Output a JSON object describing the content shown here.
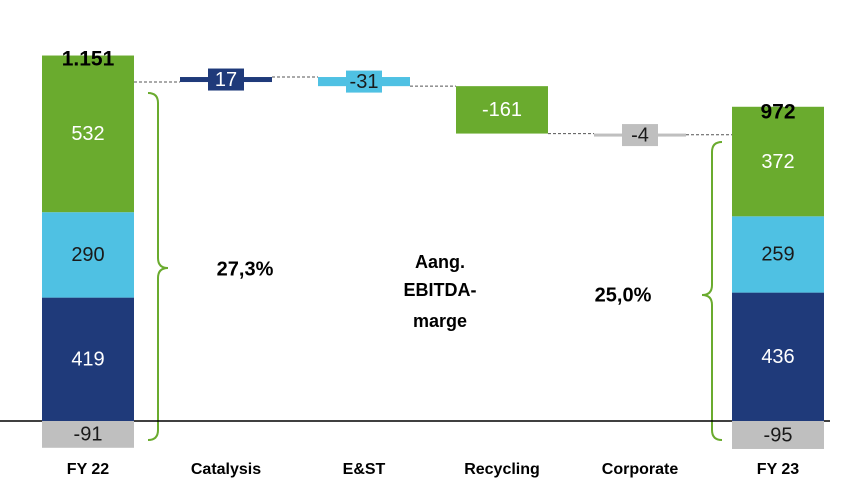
{
  "chart_data": {
    "type": "waterfall",
    "categories": [
      "FY 22",
      "Catalysis",
      "E&ST",
      "Recycling",
      "Corporate",
      "FY 23"
    ],
    "series": [
      {
        "color": "#1f3a7a",
        "label_color": "#ffffff",
        "values": [
          419,
          null,
          null,
          null,
          null,
          436
        ]
      },
      {
        "color": "#4fc1e3",
        "label_color": "#1a1a1a",
        "values": [
          290,
          null,
          null,
          null,
          null,
          259
        ]
      },
      {
        "color": "#6aab2e",
        "label_color": "#ffffff",
        "values": [
          532,
          null,
          null,
          null,
          null,
          372
        ]
      },
      {
        "color": "#bfbfbf",
        "label_color": "#1a1a1a",
        "values": [
          -91,
          null,
          null,
          null,
          null,
          -95
        ]
      }
    ],
    "totals": {
      "values": [
        1151,
        null,
        null,
        null,
        null,
        972
      ],
      "value_labels": [
        "1.151",
        null,
        null,
        null,
        null,
        "972"
      ]
    },
    "deltas": {
      "values": [
        null,
        17,
        -31,
        -161,
        -4,
        null
      ],
      "colors": [
        null,
        "#1f3a7a",
        "#4fc1e3",
        "#6aab2e",
        "#bfbfbf",
        null
      ],
      "label_colors": [
        null,
        "#ffffff",
        "#1a1a1a",
        "#ffffff",
        "#1a1a1a",
        null
      ]
    },
    "annotations": [
      "27,3%",
      "Aang.",
      "EBITDA-",
      "marge",
      "25,0%"
    ],
    "ylim": [
      -150,
      1300
    ]
  }
}
